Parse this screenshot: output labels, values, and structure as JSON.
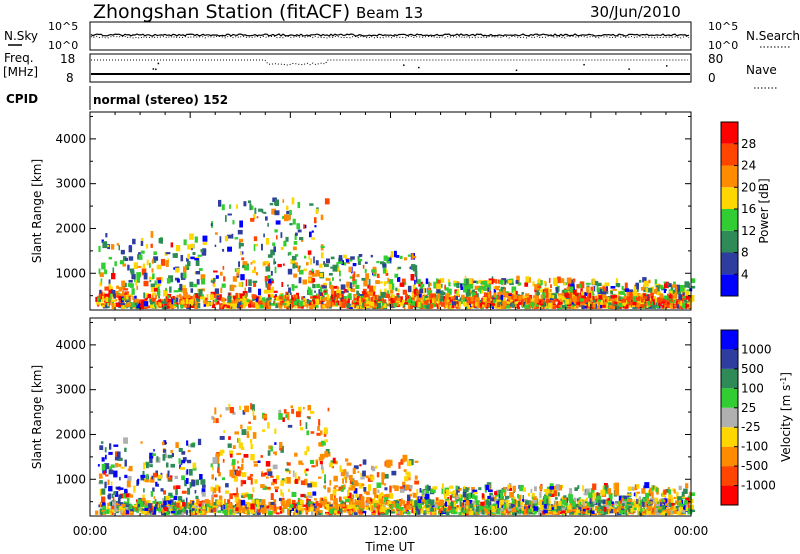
{
  "header": {
    "station": "Zhongshan Station (fitACF)",
    "beam": "Beam 13",
    "date": "30/Jun/2010"
  },
  "noise_panel": {
    "left_label": "N.Sky",
    "right_label": "N.Search",
    "left_ticks": [
      "10^5",
      "10^0"
    ],
    "right_ticks": [
      "10^5",
      "10^0"
    ]
  },
  "freq_panel": {
    "left_label_top": "Freq.",
    "left_label_bottom": "[MHz]",
    "right_label": "Nave",
    "left_ticks": [
      "18",
      "8"
    ],
    "right_ticks": [
      "80",
      "0"
    ],
    "cpid_label": "CPID",
    "cpid_text": "normal (stereo) 152"
  },
  "chart_data": [
    {
      "type": "heatmap",
      "title": "",
      "xlabel": "Time UT",
      "ylabel": "Slant Range [km]",
      "x_ticks": [
        "00:00",
        "04:00",
        "08:00",
        "12:00",
        "16:00",
        "20:00",
        "00:00"
      ],
      "xlim_hours": [
        0,
        24
      ],
      "y_ticks": [
        "1000",
        "2000",
        "3000",
        "4000"
      ],
      "ylim_km": [
        180,
        4600
      ],
      "colorbar": {
        "label": "Power [dB]",
        "tick_labels": [
          "4",
          "8",
          "12",
          "16",
          "20",
          "24",
          "28"
        ],
        "range": [
          0,
          32
        ],
        "colors": [
          "#0000ff",
          "#2e3e9e",
          "#2e8b57",
          "#32cd32",
          "#ffd700",
          "#ff8c00",
          "#ff4500",
          "#ff0000"
        ]
      },
      "activity": [
        {
          "t": [
            0.3,
            4.5
          ],
          "r": [
            200,
            1800
          ],
          "level": 16
        },
        {
          "t": [
            4.8,
            9.5
          ],
          "r": [
            200,
            2600
          ],
          "level": 18
        },
        {
          "t": [
            9.5,
            13.0
          ],
          "r": [
            200,
            1400
          ],
          "level": 20
        },
        {
          "t": [
            13.0,
            24.0
          ],
          "r": [
            200,
            800
          ],
          "level": 14
        }
      ]
    },
    {
      "type": "heatmap",
      "title": "",
      "xlabel": "Time UT",
      "ylabel": "Slant Range [km]",
      "x_ticks": [
        "00:00",
        "04:00",
        "08:00",
        "12:00",
        "16:00",
        "20:00",
        "00:00"
      ],
      "xlim_hours": [
        0,
        24
      ],
      "y_ticks": [
        "1000",
        "2000",
        "3000",
        "4000"
      ],
      "ylim_km": [
        180,
        4600
      ],
      "colorbar": {
        "label": "Velocity [m s^-1]",
        "tick_labels": [
          "1000",
          "500",
          "100",
          "25",
          "-25",
          "-100",
          "-500",
          "-1000"
        ],
        "colors": [
          "#0000ff",
          "#2e3e9e",
          "#2e8b57",
          "#32cd32",
          "#b0b0b0",
          "#ffd700",
          "#ff8c00",
          "#ff4500",
          "#ff0000"
        ]
      },
      "activity": [
        {
          "t": [
            0.3,
            4.5
          ],
          "r": [
            200,
            1800
          ],
          "level": "mixed"
        },
        {
          "t": [
            4.8,
            9.5
          ],
          "r": [
            200,
            2600
          ],
          "level": "negative"
        },
        {
          "t": [
            9.5,
            13.0
          ],
          "r": [
            200,
            1400
          ],
          "level": "negative"
        },
        {
          "t": [
            13.0,
            24.0
          ],
          "r": [
            200,
            800
          ],
          "level": "mixed"
        }
      ]
    }
  ]
}
